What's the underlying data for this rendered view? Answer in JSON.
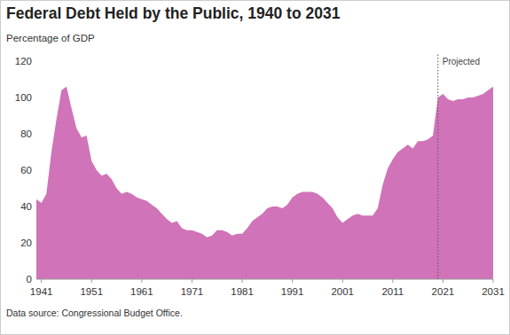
{
  "chart_data": {
    "type": "area",
    "title": "Federal Debt Held by the Public, 1940 to 2031",
    "subtitle": "Percentage of GDP",
    "source": "Data source: Congressional Budget Office.",
    "color": "#d073b9",
    "grid": false,
    "xlim": [
      1940,
      2031
    ],
    "xticks": [
      1941,
      1951,
      1961,
      1971,
      1981,
      1991,
      2001,
      2011,
      2021,
      2031
    ],
    "ylim": [
      0,
      120
    ],
    "yticks": [
      0,
      20,
      40,
      60,
      80,
      100,
      120
    ],
    "annotations": [
      {
        "text": "Projected",
        "x": 2020
      }
    ],
    "x": [
      1940,
      1941,
      1942,
      1943,
      1944,
      1945,
      1946,
      1947,
      1948,
      1949,
      1950,
      1951,
      1952,
      1953,
      1954,
      1955,
      1956,
      1957,
      1958,
      1959,
      1960,
      1961,
      1962,
      1963,
      1964,
      1965,
      1966,
      1967,
      1968,
      1969,
      1970,
      1971,
      1972,
      1973,
      1974,
      1975,
      1976,
      1977,
      1978,
      1979,
      1980,
      1981,
      1982,
      1983,
      1984,
      1985,
      1986,
      1987,
      1988,
      1989,
      1990,
      1991,
      1992,
      1993,
      1994,
      1995,
      1996,
      1997,
      1998,
      1999,
      2000,
      2001,
      2002,
      2003,
      2004,
      2005,
      2006,
      2007,
      2008,
      2009,
      2010,
      2011,
      2012,
      2013,
      2014,
      2015,
      2016,
      2017,
      2018,
      2019,
      2020,
      2021,
      2022,
      2023,
      2024,
      2025,
      2026,
      2027,
      2028,
      2029,
      2030,
      2031
    ],
    "values": [
      44,
      42,
      47,
      70,
      88,
      104,
      106,
      94,
      83,
      78,
      79,
      65,
      60,
      57,
      58,
      55,
      50,
      47,
      48,
      47,
      45,
      44,
      43,
      41,
      39,
      36,
      33,
      31,
      32,
      28,
      27,
      27,
      26,
      25,
      23,
      24,
      27,
      27,
      26,
      24,
      25,
      25,
      28,
      32,
      34,
      36,
      39,
      40,
      40,
      39,
      41,
      45,
      47,
      48,
      48,
      48,
      47,
      45,
      42,
      39,
      34,
      31,
      33,
      35,
      36,
      35,
      35,
      35,
      39,
      52,
      61,
      66,
      70,
      72,
      74,
      72,
      76,
      76,
      77,
      79,
      100,
      102,
      99,
      98,
      99,
      99,
      100,
      100,
      101,
      102,
      104,
      106
    ]
  }
}
